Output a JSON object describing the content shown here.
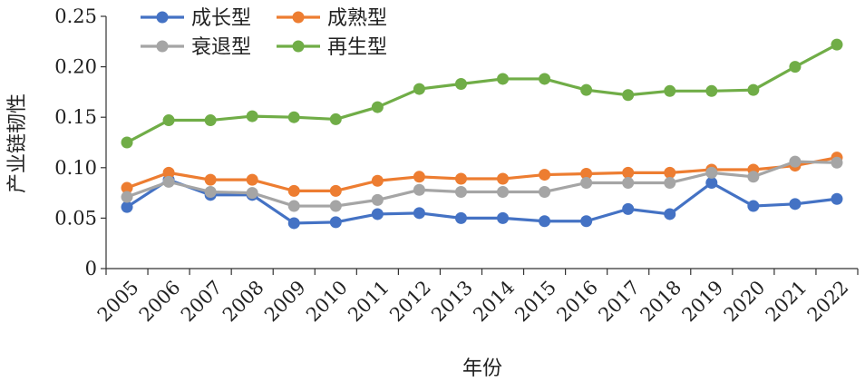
{
  "chart_data": {
    "type": "line",
    "title": "",
    "xlabel": "年份",
    "ylabel": "产业链韧性",
    "categories": [
      "2005",
      "2006",
      "2007",
      "2008",
      "2009",
      "2010",
      "2011",
      "2012",
      "2013",
      "2014",
      "2015",
      "2016",
      "2017",
      "2018",
      "2019",
      "2020",
      "2021",
      "2022"
    ],
    "ylim": [
      0,
      0.25
    ],
    "yticks": [
      "0",
      "0.05",
      "0.10",
      "0.15",
      "0.20",
      "0.25"
    ],
    "grid": false,
    "legend_position": "top-left",
    "series": [
      {
        "name": "成长型",
        "color": "#4472C4",
        "values": [
          0.061,
          0.088,
          0.073,
          0.073,
          0.045,
          0.046,
          0.054,
          0.055,
          0.05,
          0.05,
          0.047,
          0.047,
          0.059,
          0.054,
          0.085,
          0.062,
          0.064,
          0.069
        ]
      },
      {
        "name": "成熟型",
        "color": "#ED7D31",
        "values": [
          0.08,
          0.095,
          0.088,
          0.088,
          0.077,
          0.077,
          0.087,
          0.091,
          0.089,
          0.089,
          0.093,
          0.094,
          0.095,
          0.095,
          0.098,
          0.098,
          0.102,
          0.11
        ]
      },
      {
        "name": "衰退型",
        "color": "#A5A5A5",
        "values": [
          0.071,
          0.086,
          0.076,
          0.075,
          0.062,
          0.062,
          0.068,
          0.078,
          0.076,
          0.076,
          0.076,
          0.085,
          0.085,
          0.085,
          0.095,
          0.091,
          0.106,
          0.105
        ]
      },
      {
        "name": "再生型",
        "color": "#70AD47",
        "values": [
          0.125,
          0.147,
          0.147,
          0.151,
          0.15,
          0.148,
          0.16,
          0.178,
          0.183,
          0.188,
          0.188,
          0.177,
          0.172,
          0.176,
          0.176,
          0.177,
          0.2,
          0.222
        ]
      }
    ]
  }
}
